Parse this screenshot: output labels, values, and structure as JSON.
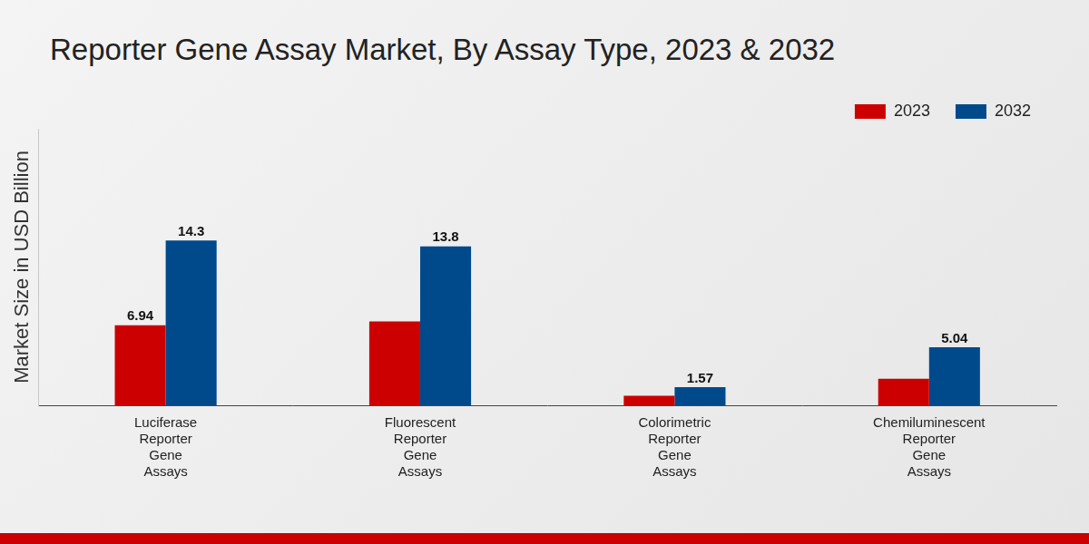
{
  "chart_data": {
    "type": "bar",
    "title": "Reporter Gene Assay Market, By Assay Type, 2023 & 2032",
    "y_label": "Market Size in USD Billion",
    "categories": [
      "Luciferase Reporter Gene Assays",
      "Fluorescent Reporter Gene Assays",
      "Colorimetric Reporter Gene Assays",
      "Chemiluminescent Reporter Gene Assays"
    ],
    "series": [
      {
        "name": "2023",
        "color": "#cc0000",
        "values": [
          6.94,
          7.27,
          0.83,
          2.31
        ],
        "value_labels": [
          "6.94",
          null,
          null,
          null
        ]
      },
      {
        "name": "2032",
        "color": "#004a8c",
        "values": [
          14.3,
          13.8,
          1.57,
          5.04
        ]
      }
    ],
    "ylim": [
      0,
      24
    ],
    "yticks": [],
    "grid": false,
    "legend": "top-right",
    "data_labels": true,
    "tick_labels": "x"
  }
}
